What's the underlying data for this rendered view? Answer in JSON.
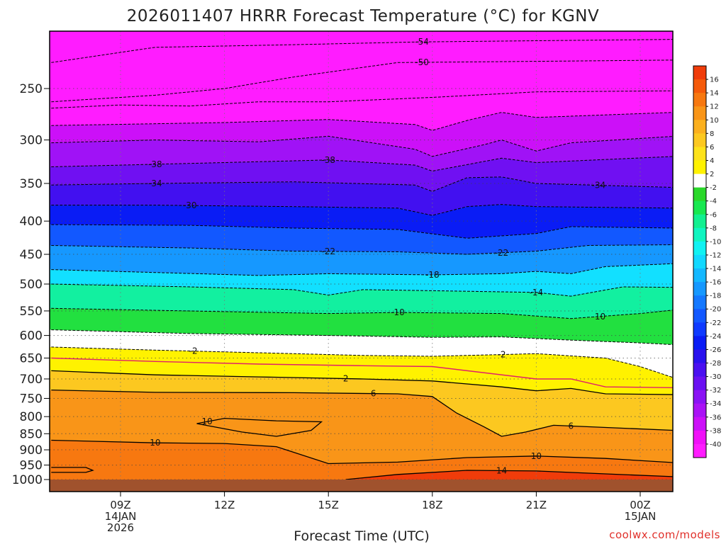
{
  "chart_data": {
    "type": "heatmap",
    "title": "2026011407 HRRR Forecast Temperature (°C) for KGNV",
    "xlabel": "Forecast Time (UTC)",
    "ylabel": "",
    "x_range_hours": [
      7,
      25
    ],
    "y_range_hpa": [
      1000,
      200
    ],
    "y_ticks": [
      "250",
      "300",
      "350",
      "400",
      "450",
      "500",
      "550",
      "600",
      "650",
      "700",
      "750",
      "800",
      "850",
      "900",
      "950",
      "1000"
    ],
    "x_ticks": [
      {
        "hour": 9,
        "lines": [
          "09Z",
          "14JAN",
          "2026"
        ]
      },
      {
        "hour": 12,
        "lines": [
          "12Z"
        ]
      },
      {
        "hour": 15,
        "lines": [
          "15Z"
        ]
      },
      {
        "hour": 18,
        "lines": [
          "18Z"
        ]
      },
      {
        "hour": 21,
        "lines": [
          "21Z"
        ]
      },
      {
        "hour": 24,
        "lines": [
          "00Z",
          "15JAN"
        ]
      }
    ],
    "colorbar": {
      "labels": [
        "16",
        "14",
        "12",
        "10",
        "8",
        "6",
        "4",
        "2",
        "-2",
        "-4",
        "-6",
        "-8",
        "-10",
        "-12",
        "-14",
        "-16",
        "-18",
        "-20",
        "-22",
        "-24",
        "-26",
        "-28",
        "-30",
        "-32",
        "-34",
        "-36",
        "-38",
        "-40"
      ],
      "colors": [
        "#f03c0a",
        "#f55a0a",
        "#f77810",
        "#f99518",
        "#fbb01e",
        "#fcc820",
        "#fde21a",
        "#fff200",
        "#ffffff",
        "#2ad82a",
        "#18e850",
        "#12f090",
        "#10f5c0",
        "#10f2f2",
        "#12d8ff",
        "#14b8ff",
        "#1698ff",
        "#1478ff",
        "#1258ff",
        "#0f3aff",
        "#0a1cf5",
        "#2a12ee",
        "#4a10f0",
        "#6a10f2",
        "#8a12f4",
        "#aa12f6",
        "#cc10f8",
        "#f010f8",
        "#ff1cff"
      ]
    },
    "contours": [
      {
        "label": "-54",
        "series": [
          {
            "x": 7,
            "p": 228
          },
          {
            "x": 10,
            "p": 216
          },
          {
            "x": 14,
            "p": 214
          },
          {
            "x": 17.5,
            "p": 212
          },
          {
            "x": 21,
            "p": 211
          },
          {
            "x": 25,
            "p": 210
          }
        ]
      },
      {
        "label": "-50",
        "series": [
          {
            "x": 7,
            "p": 262
          },
          {
            "x": 10,
            "p": 256
          },
          {
            "x": 12,
            "p": 250
          },
          {
            "x": 14,
            "p": 240
          },
          {
            "x": 17,
            "p": 228
          },
          {
            "x": 21,
            "p": 227
          },
          {
            "x": 25,
            "p": 226
          }
        ]
      },
      {
        "label": "",
        "series": [
          {
            "x": 7,
            "p": 268
          },
          {
            "x": 9,
            "p": 265
          },
          {
            "x": 11,
            "p": 266
          },
          {
            "x": 13,
            "p": 262
          },
          {
            "x": 15,
            "p": 262
          },
          {
            "x": 18,
            "p": 258
          },
          {
            "x": 21,
            "p": 253
          },
          {
            "x": 25,
            "p": 252
          }
        ]
      },
      {
        "label": "",
        "series": [
          {
            "x": 7,
            "p": 285
          },
          {
            "x": 12,
            "p": 282
          },
          {
            "x": 15,
            "p": 279
          },
          {
            "x": 17.5,
            "p": 284
          },
          {
            "x": 18,
            "p": 290
          },
          {
            "x": 19,
            "p": 280
          },
          {
            "x": 20,
            "p": 272
          },
          {
            "x": 21,
            "p": 277
          },
          {
            "x": 25,
            "p": 272
          }
        ]
      },
      {
        "label": "",
        "series": [
          {
            "x": 7,
            "p": 303
          },
          {
            "x": 10,
            "p": 300
          },
          {
            "x": 13,
            "p": 302
          },
          {
            "x": 15,
            "p": 296
          },
          {
            "x": 17.5,
            "p": 310
          },
          {
            "x": 18,
            "p": 318
          },
          {
            "x": 19.5,
            "p": 305
          },
          {
            "x": 20,
            "p": 300
          },
          {
            "x": 21,
            "p": 312
          },
          {
            "x": 22,
            "p": 303
          },
          {
            "x": 25,
            "p": 296
          }
        ]
      },
      {
        "label": "-38",
        "series": [
          {
            "x": 7,
            "p": 330
          },
          {
            "x": 9,
            "p": 328
          },
          {
            "x": 12,
            "p": 325
          },
          {
            "x": 15,
            "p": 322
          },
          {
            "x": 17.5,
            "p": 328
          },
          {
            "x": 18,
            "p": 335
          },
          {
            "x": 20,
            "p": 320
          },
          {
            "x": 21,
            "p": 325
          },
          {
            "x": 25,
            "p": 318
          }
        ]
      },
      {
        "label": "-34",
        "series": [
          {
            "x": 7,
            "p": 352
          },
          {
            "x": 10,
            "p": 350
          },
          {
            "x": 14,
            "p": 348
          },
          {
            "x": 17.5,
            "p": 352
          },
          {
            "x": 18,
            "p": 360
          },
          {
            "x": 19,
            "p": 343
          },
          {
            "x": 20,
            "p": 342
          },
          {
            "x": 21,
            "p": 350
          },
          {
            "x": 25,
            "p": 355
          }
        ]
      },
      {
        "label": "-30",
        "series": [
          {
            "x": 7,
            "p": 378
          },
          {
            "x": 10,
            "p": 378
          },
          {
            "x": 14,
            "p": 380
          },
          {
            "x": 17,
            "p": 382
          },
          {
            "x": 18,
            "p": 392
          },
          {
            "x": 19,
            "p": 380
          },
          {
            "x": 20,
            "p": 377
          },
          {
            "x": 21,
            "p": 380
          },
          {
            "x": 25,
            "p": 382
          }
        ]
      },
      {
        "label": "",
        "series": [
          {
            "x": 7,
            "p": 405
          },
          {
            "x": 11,
            "p": 406
          },
          {
            "x": 14,
            "p": 410
          },
          {
            "x": 17,
            "p": 412
          },
          {
            "x": 19,
            "p": 425
          },
          {
            "x": 21,
            "p": 418
          },
          {
            "x": 22,
            "p": 408
          },
          {
            "x": 25,
            "p": 410
          }
        ]
      },
      {
        "label": "-22",
        "series": [
          {
            "x": 7,
            "p": 436
          },
          {
            "x": 11,
            "p": 440
          },
          {
            "x": 14,
            "p": 445
          },
          {
            "x": 17,
            "p": 446
          },
          {
            "x": 19,
            "p": 450
          },
          {
            "x": 21,
            "p": 445
          },
          {
            "x": 22.5,
            "p": 436
          },
          {
            "x": 25,
            "p": 435
          }
        ]
      },
      {
        "label": "-18",
        "series": [
          {
            "x": 7,
            "p": 475
          },
          {
            "x": 10,
            "p": 480
          },
          {
            "x": 13,
            "p": 485
          },
          {
            "x": 15,
            "p": 482
          },
          {
            "x": 18,
            "p": 484
          },
          {
            "x": 20,
            "p": 482
          },
          {
            "x": 21,
            "p": 478
          },
          {
            "x": 22,
            "p": 482
          },
          {
            "x": 23,
            "p": 470
          },
          {
            "x": 25,
            "p": 465
          }
        ]
      },
      {
        "label": "-14",
        "series": [
          {
            "x": 7,
            "p": 500
          },
          {
            "x": 11,
            "p": 505
          },
          {
            "x": 14,
            "p": 510
          },
          {
            "x": 15,
            "p": 520
          },
          {
            "x": 16,
            "p": 510
          },
          {
            "x": 18,
            "p": 512
          },
          {
            "x": 20,
            "p": 514
          },
          {
            "x": 21,
            "p": 515
          },
          {
            "x": 22,
            "p": 522
          },
          {
            "x": 23.5,
            "p": 505
          },
          {
            "x": 25,
            "p": 506
          }
        ]
      },
      {
        "label": "-10",
        "series": [
          {
            "x": 7,
            "p": 545
          },
          {
            "x": 11,
            "p": 550
          },
          {
            "x": 15,
            "p": 555
          },
          {
            "x": 17,
            "p": 553
          },
          {
            "x": 20,
            "p": 555
          },
          {
            "x": 22,
            "p": 565
          },
          {
            "x": 24,
            "p": 555
          },
          {
            "x": 25,
            "p": 548
          }
        ]
      },
      {
        "label": "",
        "series": [
          {
            "x": 7,
            "p": 588
          },
          {
            "x": 11,
            "p": 596
          },
          {
            "x": 15,
            "p": 600
          },
          {
            "x": 18,
            "p": 604
          },
          {
            "x": 20,
            "p": 603
          },
          {
            "x": 22,
            "p": 610
          },
          {
            "x": 24,
            "p": 616
          },
          {
            "x": 25,
            "p": 620
          }
        ]
      },
      {
        "label": "-2",
        "series": [
          {
            "x": 7,
            "p": 625
          },
          {
            "x": 10,
            "p": 632
          },
          {
            "x": 13,
            "p": 638
          },
          {
            "x": 16,
            "p": 644
          },
          {
            "x": 18,
            "p": 646
          },
          {
            "x": 21,
            "p": 640
          },
          {
            "x": 23,
            "p": 650
          },
          {
            "x": 24,
            "p": 670
          },
          {
            "x": 25,
            "p": 698
          }
        ]
      },
      {
        "label": "2",
        "series": [
          {
            "x": 7,
            "p": 680
          },
          {
            "x": 10,
            "p": 690
          },
          {
            "x": 13,
            "p": 695
          },
          {
            "x": 16,
            "p": 700
          },
          {
            "x": 18,
            "p": 705
          },
          {
            "x": 20,
            "p": 720
          },
          {
            "x": 21,
            "p": 730
          },
          {
            "x": 22,
            "p": 724
          },
          {
            "x": 23,
            "p": 738
          },
          {
            "x": 25,
            "p": 740
          }
        ]
      },
      {
        "label": "6",
        "series": [
          {
            "x": 7,
            "p": 728
          },
          {
            "x": 10,
            "p": 734
          },
          {
            "x": 14,
            "p": 735
          },
          {
            "x": 17,
            "p": 738
          },
          {
            "x": 18,
            "p": 745
          },
          {
            "x": 18.7,
            "p": 790
          },
          {
            "x": 19.5,
            "p": 830
          },
          {
            "x": 20,
            "p": 858
          },
          {
            "x": 20.7,
            "p": 845
          },
          {
            "x": 21.5,
            "p": 825
          },
          {
            "x": 25,
            "p": 840
          }
        ]
      },
      {
        "label": "10",
        "series": [
          {
            "x": 7,
            "p": 870
          },
          {
            "x": 10,
            "p": 878
          },
          {
            "x": 12,
            "p": 880
          },
          {
            "x": 13.5,
            "p": 890
          },
          {
            "x": 15,
            "p": 945
          },
          {
            "x": 17,
            "p": 940
          },
          {
            "x": 19,
            "p": 925
          },
          {
            "x": 21,
            "p": 920
          },
          {
            "x": 23,
            "p": 928
          },
          {
            "x": 25,
            "p": 942
          }
        ]
      },
      {
        "label": "10",
        "series": [
          {
            "x": 11.2,
            "p": 820
          },
          {
            "x": 12,
            "p": 805
          },
          {
            "x": 13.5,
            "p": 812
          },
          {
            "x": 14.8,
            "p": 815
          },
          {
            "x": 14.5,
            "p": 840
          },
          {
            "x": 13.5,
            "p": 858
          },
          {
            "x": 12.5,
            "p": 845
          },
          {
            "x": 11.2,
            "p": 820
          }
        ]
      },
      {
        "label": "14",
        "series": [
          {
            "x": 15.5,
            "p": 1000
          },
          {
            "x": 17,
            "p": 982
          },
          {
            "x": 19,
            "p": 968
          },
          {
            "x": 21,
            "p": 970
          },
          {
            "x": 23,
            "p": 980
          },
          {
            "x": 25,
            "p": 990
          }
        ]
      },
      {
        "label": "",
        "series": [
          {
            "x": 7,
            "p": 958
          },
          {
            "x": 8,
            "p": 958
          },
          {
            "x": 8.2,
            "p": 968
          },
          {
            "x": 8,
            "p": 975
          },
          {
            "x": 7,
            "p": 975
          }
        ]
      }
    ],
    "freezing_line": [
      {
        "x": 7,
        "p": 650
      },
      {
        "x": 10,
        "p": 658
      },
      {
        "x": 13,
        "p": 664
      },
      {
        "x": 16,
        "p": 668
      },
      {
        "x": 18,
        "p": 670
      },
      {
        "x": 21,
        "p": 700
      },
      {
        "x": 22,
        "p": 700
      },
      {
        "x": 23,
        "p": 720
      },
      {
        "x": 25,
        "p": 722
      }
    ]
  },
  "credit": "coolwx.com/models",
  "colors": {
    "ground": "#a0522d",
    "freezing_line": "#e0206a"
  }
}
